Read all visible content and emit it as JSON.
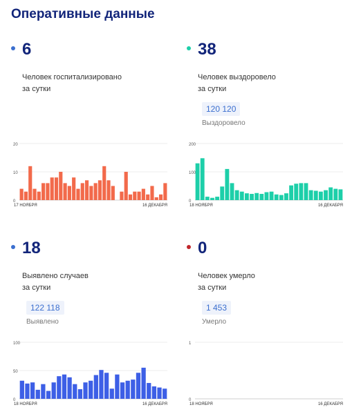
{
  "title": "Оперативные данные",
  "cards": [
    {
      "value": "6",
      "label_line1": "Человек госпитализировано",
      "label_line2": "за сутки",
      "total": "",
      "total_caption": "",
      "color": "#f26a4b",
      "dot_color": "#3b6fcf"
    },
    {
      "value": "38",
      "label_line1": "Человек выздоровело",
      "label_line2": "за сутки",
      "total": "120 120",
      "total_caption": "Выздоровело",
      "color": "#1dcfa9",
      "dot_color": "#1dcfa9"
    },
    {
      "value": "18",
      "label_line1": "Выявлено случаев",
      "label_line2": "за сутки",
      "total": "122 118",
      "total_caption": "Выявлено",
      "color": "#3d5fe6",
      "dot_color": "#3b6fcf"
    },
    {
      "value": "0",
      "label_line1": "Человек умерло",
      "label_line2": "за сутки",
      "total": "1 453",
      "total_caption": "Умерло",
      "color": "#d9342b",
      "dot_color": "#c0262b"
    }
  ],
  "chart_data": [
    {
      "type": "bar",
      "title": "",
      "x_start_label": "17 НОЯБРЯ",
      "x_end_label": "16 ДЕКАБРЯ",
      "ylim": [
        0,
        20
      ],
      "yticks": [
        0,
        10,
        20
      ],
      "values": [
        4,
        3,
        12,
        4,
        3,
        6,
        6,
        8,
        8,
        10,
        6,
        5,
        8,
        4,
        6,
        7,
        5,
        6,
        7,
        12,
        7,
        5,
        0,
        3,
        10,
        2,
        3,
        3,
        4,
        2,
        5,
        1,
        2,
        6
      ]
    },
    {
      "type": "bar",
      "title": "",
      "x_start_label": "18 НОЯБРЯ",
      "x_end_label": "16 ДЕКАБРЯ",
      "ylim": [
        0,
        200
      ],
      "yticks": [
        0,
        100,
        200
      ],
      "values": [
        130,
        148,
        12,
        8,
        12,
        48,
        110,
        60,
        35,
        30,
        24,
        22,
        25,
        22,
        28,
        30,
        20,
        18,
        24,
        52,
        58,
        60,
        60,
        35,
        33,
        30,
        35,
        45,
        40,
        38
      ]
    },
    {
      "type": "bar",
      "title": "",
      "x_start_label": "18 НОЯБРЯ",
      "x_end_label": "16 ДЕКАБРЯ",
      "ylim": [
        0,
        100
      ],
      "yticks": [
        0,
        50,
        100
      ],
      "values": [
        32,
        27,
        29,
        16,
        26,
        14,
        29,
        40,
        43,
        38,
        26,
        17,
        29,
        32,
        42,
        51,
        46,
        18,
        43,
        29,
        32,
        34,
        46,
        55,
        28,
        22,
        20,
        18
      ]
    },
    {
      "type": "bar",
      "title": "",
      "x_start_label": "18 НОЯБРЯ",
      "x_end_label": "16 ДЕКАБРЯ",
      "ylim": [
        0,
        1
      ],
      "yticks": [
        0,
        1
      ],
      "values": []
    }
  ]
}
